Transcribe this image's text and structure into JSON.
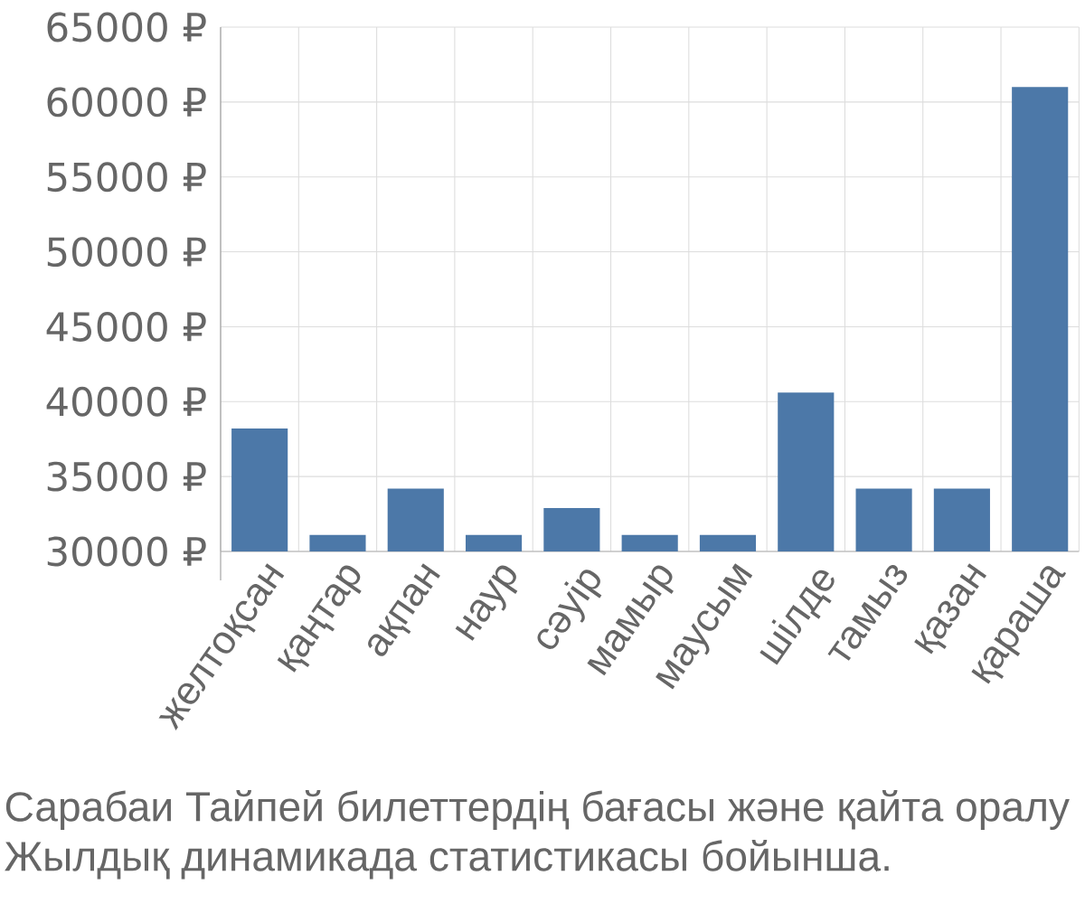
{
  "chart_data": {
    "type": "bar",
    "categories": [
      "желтоқсан",
      "қаңтар",
      "ақпан",
      "наур",
      "сәуір",
      "мамыр",
      "маусым",
      "шілде",
      "тамыз",
      "қазан",
      "қараша"
    ],
    "values": [
      38200,
      31100,
      34200,
      31100,
      32900,
      31100,
      31100,
      40600,
      34200,
      34200,
      61000
    ],
    "color": "#4c78a8",
    "ylim": [
      30000,
      65000
    ],
    "yticks": [
      {
        "value": 30000,
        "label": "30000 ₽"
      },
      {
        "value": 35000,
        "label": "35000 ₽"
      },
      {
        "value": 40000,
        "label": "40000 ₽"
      },
      {
        "value": 45000,
        "label": "45000 ₽"
      },
      {
        "value": 50000,
        "label": "50000 ₽"
      },
      {
        "value": 55000,
        "label": "55000 ₽"
      },
      {
        "value": 60000,
        "label": "60000 ₽"
      },
      {
        "value": 65000,
        "label": "65000 ₽"
      }
    ],
    "grid": true,
    "annotations": [
      "Сарабаи Тайпей билеттердің бағасы және қайта оралу",
      "Жылдық динамикада статистикасы бойынша."
    ]
  }
}
